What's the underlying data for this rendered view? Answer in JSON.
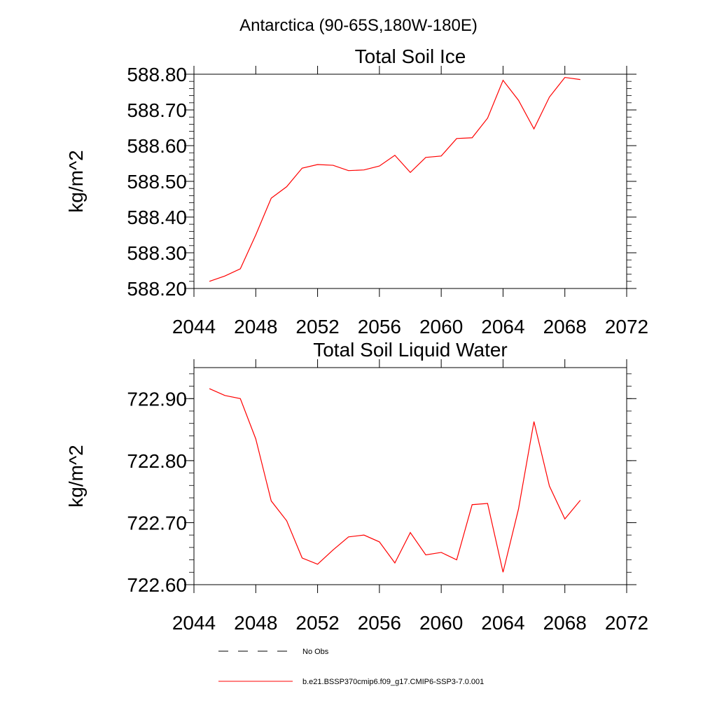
{
  "page": {
    "title": "Antarctica (90-65S,180W-180E)"
  },
  "chart_data": [
    {
      "type": "line",
      "title": "Total Soil Ice",
      "xlabel": "",
      "ylabel": "kg/m^2",
      "xlim": [
        2044,
        2072
      ],
      "ylim": [
        588.2,
        588.8
      ],
      "x_ticks": [
        2044,
        2048,
        2052,
        2056,
        2060,
        2064,
        2068,
        2072
      ],
      "x_tick_labels": [
        "2044",
        "2048",
        "2052",
        "2056",
        "2060",
        "2064",
        "2068",
        "2072"
      ],
      "y_ticks": [
        588.2,
        588.3,
        588.4,
        588.5,
        588.6,
        588.7,
        588.8
      ],
      "y_tick_labels": [
        "588.20",
        "588.30",
        "588.40",
        "588.50",
        "588.60",
        "588.70",
        "588.80"
      ],
      "grid": false,
      "series": [
        {
          "name": "b.e21.BSSP370cmip6.f09_g17.CMIP6-SSP3-7.0.001",
          "color": "#ff0000",
          "x": [
            2045,
            2046,
            2047,
            2048,
            2049,
            2050,
            2051,
            2052,
            2053,
            2054,
            2055,
            2056,
            2057,
            2058,
            2059,
            2060,
            2061,
            2062,
            2063,
            2064,
            2065,
            2066,
            2067,
            2068,
            2069
          ],
          "y": [
            588.22,
            588.235,
            588.255,
            588.35,
            588.453,
            588.485,
            588.537,
            588.547,
            588.545,
            588.53,
            588.532,
            588.543,
            588.573,
            588.525,
            588.567,
            588.571,
            588.62,
            588.622,
            588.677,
            588.783,
            588.727,
            588.647,
            588.736,
            588.791,
            588.785
          ]
        }
      ]
    },
    {
      "type": "line",
      "title": "Total Soil Liquid Water",
      "xlabel": "",
      "ylabel": "kg/m^2",
      "xlim": [
        2044,
        2072
      ],
      "ylim": [
        722.6,
        722.95
      ],
      "x_ticks": [
        2044,
        2048,
        2052,
        2056,
        2060,
        2064,
        2068,
        2072
      ],
      "x_tick_labels": [
        "2044",
        "2048",
        "2052",
        "2056",
        "2060",
        "2064",
        "2068",
        "2072"
      ],
      "y_ticks": [
        722.6,
        722.7,
        722.8,
        722.9
      ],
      "y_tick_labels": [
        "722.60",
        "722.70",
        "722.80",
        "722.90"
      ],
      "grid": false,
      "series": [
        {
          "name": "b.e21.BSSP370cmip6.f09_g17.CMIP6-SSP3-7.0.001",
          "color": "#ff0000",
          "x": [
            2045,
            2046,
            2047,
            2048,
            2049,
            2050,
            2051,
            2052,
            2053,
            2054,
            2055,
            2056,
            2057,
            2058,
            2059,
            2060,
            2061,
            2062,
            2063,
            2064,
            2065,
            2066,
            2067,
            2068,
            2069
          ],
          "y": [
            722.916,
            722.905,
            722.9,
            722.835,
            722.735,
            722.703,
            722.643,
            722.633,
            722.656,
            722.677,
            722.68,
            722.669,
            722.635,
            722.684,
            722.648,
            722.652,
            722.64,
            722.729,
            722.731,
            722.62,
            722.722,
            722.863,
            722.759,
            722.706,
            722.736
          ]
        }
      ]
    }
  ],
  "legend": {
    "placement": "bottom-left",
    "entries": [
      {
        "label": "No Obs",
        "color": "#000000",
        "style": "dashed"
      },
      {
        "label": "b.e21.BSSP370cmip6.f09_g17.CMIP6-SSP3-7.0.001",
        "color": "#ff0000",
        "style": "solid"
      }
    ]
  }
}
